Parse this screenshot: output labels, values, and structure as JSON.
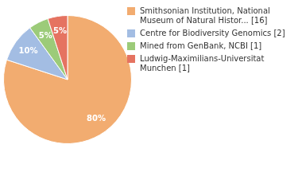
{
  "chart_data": {
    "type": "pie",
    "categories": [
      "Smithsonian Institution, National Museum of Natural Histor... [16]",
      "Centre for Biodiversity Genomics [2]",
      "Mined from GenBank, NCBI [1]",
      "Ludwig-Maximilians-Universitat Munchen [1]"
    ],
    "values": [
      80,
      10,
      5,
      5
    ],
    "value_labels": [
      "80%",
      "10%",
      "5%",
      "5%"
    ],
    "colors": [
      "#f2ac70",
      "#a3bde3",
      "#9ccb79",
      "#e57361"
    ],
    "data_labels": true,
    "legend": "right"
  }
}
